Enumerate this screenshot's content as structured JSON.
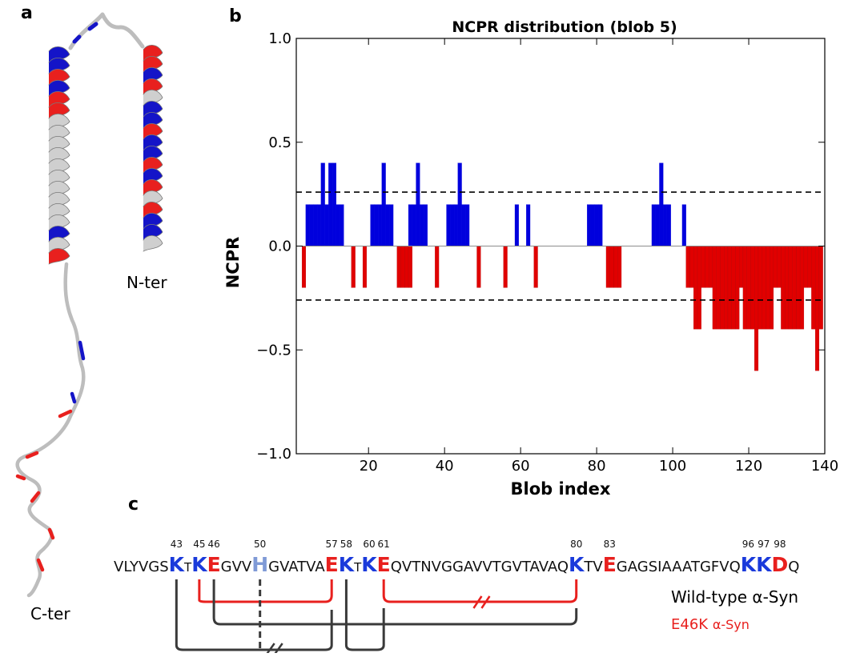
{
  "panels": {
    "a": "a",
    "b": "b",
    "c": "c"
  },
  "structure": {
    "n_term": "N-ter",
    "c_term": "C-ter",
    "colors": {
      "positive": "#1414c8",
      "negative": "#e8201e",
      "neutral": "#cfcfcf"
    }
  },
  "chart_data": {
    "type": "bar",
    "title": "NCPR distribution (blob 5)",
    "xlabel": "Blob index",
    "ylabel": "NCPR",
    "xlim": [
      1,
      140
    ],
    "ylim": [
      -1.0,
      1.0
    ],
    "xticks": [
      "20",
      "40",
      "60",
      "80",
      "100",
      "120",
      "140"
    ],
    "yticks": [
      "1.0",
      "0.5",
      "0.0",
      "−0.5",
      "−1.0"
    ],
    "threshold_lines": [
      0.26,
      -0.26
    ],
    "colors": {
      "positive": "#0000dd",
      "negative": "#e00000"
    },
    "series": [
      {
        "index": [
          4,
          5,
          6,
          7,
          8,
          9,
          10,
          11,
          12,
          13
        ],
        "values": [
          0.2,
          0.2,
          0.2,
          0.2,
          0.4,
          0.2,
          0.4,
          0.4,
          0.2,
          0.2
        ]
      },
      {
        "index": [
          21,
          22,
          23,
          24,
          25,
          26
        ],
        "values": [
          0.2,
          0.2,
          0.2,
          0.4,
          0.2,
          0.2
        ]
      },
      {
        "index": [
          31,
          32,
          33,
          34,
          35
        ],
        "values": [
          0.2,
          0.2,
          0.4,
          0.2,
          0.2
        ]
      },
      {
        "index": [
          41,
          42,
          43,
          44,
          45,
          46
        ],
        "values": [
          0.2,
          0.2,
          0.2,
          0.4,
          0.2,
          0.2
        ]
      },
      {
        "index": [
          59,
          61,
          62
        ],
        "values": [
          0.2,
          0.0,
          0.2
        ]
      },
      {
        "index": [
          78,
          79,
          80,
          81
        ],
        "values": [
          0.2,
          0.2,
          0.2,
          0.2
        ]
      },
      {
        "index": [
          95,
          96,
          97,
          98,
          99
        ],
        "values": [
          0.2,
          0.2,
          0.4,
          0.2,
          0.2
        ]
      },
      {
        "index": [
          103
        ],
        "values": [
          0.2
        ]
      }
    ],
    "negative_bars": [
      {
        "index": 3,
        "value": -0.2
      },
      {
        "index": 16,
        "value": -0.2
      },
      {
        "index": 19,
        "value": -0.2
      },
      {
        "index": 28,
        "value": -0.2
      },
      {
        "index": 29,
        "value": -0.2
      },
      {
        "index": 30,
        "value": -0.2
      },
      {
        "index": 31,
        "value": -0.2
      },
      {
        "index": 38,
        "value": -0.2
      },
      {
        "index": 49,
        "value": -0.2
      },
      {
        "index": 56,
        "value": -0.2
      },
      {
        "index": 64,
        "value": -0.2
      },
      {
        "index": 83,
        "value": -0.2
      },
      {
        "index": 84,
        "value": -0.2
      },
      {
        "index": 85,
        "value": -0.2
      },
      {
        "index": 86,
        "value": -0.2
      },
      {
        "index": 104,
        "value": -0.2
      },
      {
        "index": 105,
        "value": -0.2
      },
      {
        "index": 106,
        "value": -0.4
      },
      {
        "index": 107,
        "value": -0.4
      },
      {
        "index": 108,
        "value": -0.2
      },
      {
        "index": 109,
        "value": -0.2
      },
      {
        "index": 110,
        "value": -0.2
      },
      {
        "index": 111,
        "value": -0.4
      },
      {
        "index": 112,
        "value": -0.4
      },
      {
        "index": 113,
        "value": -0.4
      },
      {
        "index": 114,
        "value": -0.4
      },
      {
        "index": 115,
        "value": -0.4
      },
      {
        "index": 116,
        "value": -0.4
      },
      {
        "index": 117,
        "value": -0.4
      },
      {
        "index": 118,
        "value": -0.2
      },
      {
        "index": 119,
        "value": -0.4
      },
      {
        "index": 120,
        "value": -0.4
      },
      {
        "index": 121,
        "value": -0.4
      },
      {
        "index": 122,
        "value": -0.6
      },
      {
        "index": 123,
        "value": -0.4
      },
      {
        "index": 124,
        "value": -0.4
      },
      {
        "index": 125,
        "value": -0.4
      },
      {
        "index": 126,
        "value": -0.4
      },
      {
        "index": 127,
        "value": -0.2
      },
      {
        "index": 128,
        "value": -0.2
      },
      {
        "index": 129,
        "value": -0.4
      },
      {
        "index": 130,
        "value": -0.4
      },
      {
        "index": 131,
        "value": -0.4
      },
      {
        "index": 132,
        "value": -0.4
      },
      {
        "index": 133,
        "value": -0.4
      },
      {
        "index": 134,
        "value": -0.4
      },
      {
        "index": 135,
        "value": -0.2
      },
      {
        "index": 136,
        "value": -0.2
      },
      {
        "index": 137,
        "value": -0.4
      },
      {
        "index": 138,
        "value": -0.6
      },
      {
        "index": 139,
        "value": -0.4
      }
    ]
  },
  "sequence": {
    "segments": [
      {
        "text": "VLYVGS",
        "style": "plain"
      },
      {
        "text": "K",
        "style": "K",
        "num": "43"
      },
      {
        "text": "T",
        "style": "small"
      },
      {
        "text": "K",
        "style": "K",
        "num": "45"
      },
      {
        "text": "E",
        "style": "E",
        "num": "46"
      },
      {
        "text": "GVV",
        "style": "plain"
      },
      {
        "text": "H",
        "style": "H",
        "num": "50"
      },
      {
        "text": "GVATVA",
        "style": "plain"
      },
      {
        "text": "E",
        "style": "E",
        "num": "57"
      },
      {
        "text": "K",
        "style": "K",
        "num": "58"
      },
      {
        "text": "T",
        "style": "small"
      },
      {
        "text": "K",
        "style": "K",
        "num": "60"
      },
      {
        "text": "E",
        "style": "E",
        "num": "61"
      },
      {
        "text": "QVTNVGGAVVTGVTAVAQ",
        "style": "plain"
      },
      {
        "text": "K",
        "style": "K",
        "num": "80"
      },
      {
        "text": "TV",
        "style": "plain"
      },
      {
        "text": "E",
        "style": "E",
        "num": "83"
      },
      {
        "text": "GAGSIAAATGFVQ",
        "style": "plain"
      },
      {
        "text": "K",
        "style": "K",
        "num": "96"
      },
      {
        "text": "K",
        "style": "K",
        "num": "97"
      },
      {
        "text": "D",
        "style": "E",
        "num": "98"
      },
      {
        "text": "Q",
        "style": "plain"
      }
    ],
    "colors": {
      "K": "#1a3adb",
      "E": "#e8201e",
      "H": "#7f9ad6",
      "plain": "#111111",
      "bracket_red": "#e8201e",
      "bracket_dark": "#3a3a3a"
    },
    "legend_wt": "Wild-type α-Syn",
    "legend_mut_a": "E46K",
    "legend_mut_b": "α-Syn"
  }
}
